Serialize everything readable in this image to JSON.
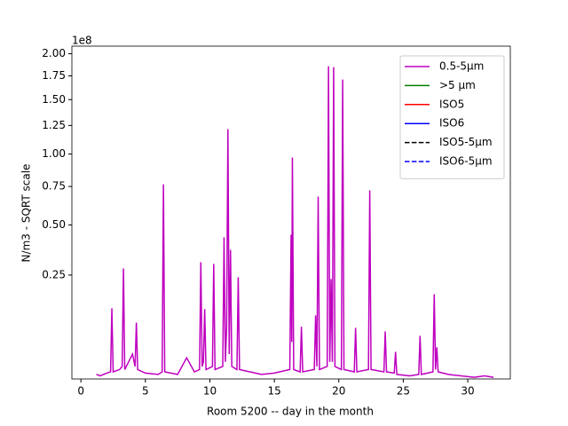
{
  "chart_data": {
    "type": "line",
    "xlabel": "Room 5200 -- day in the month",
    "ylabel": "N/m3 - SQRT scale",
    "y_offset_label": "1e8",
    "yscale": "sqrt",
    "xlim": [
      -0.7,
      33.3
    ],
    "ylim": [
      0.005,
      2.09
    ],
    "xticks": [
      0,
      5,
      10,
      15,
      20,
      25,
      30
    ],
    "yticks": [
      {
        "value": 0.25,
        "label": "0.25"
      },
      {
        "value": 0.5,
        "label": "0.50"
      },
      {
        "value": 0.75,
        "label": "0.75"
      },
      {
        "value": 1.0,
        "label": "1.00"
      },
      {
        "value": 1.25,
        "label": "1.25"
      },
      {
        "value": 1.5,
        "label": "1.50"
      },
      {
        "value": 1.75,
        "label": "1.75"
      },
      {
        "value": 2.0,
        "label": "2.00"
      }
    ],
    "legend": "upper right",
    "series": [
      {
        "name": "0.5-5µm",
        "color": "#bf00bf",
        "dash": "solid",
        "x": [
          1.2,
          1.5,
          2.0,
          2.3,
          2.4,
          2.5,
          3.0,
          3.2,
          3.3,
          3.4,
          3.7,
          4.0,
          4.2,
          4.3,
          4.4,
          5.0,
          6.0,
          6.3,
          6.4,
          6.5,
          7.5,
          8.2,
          8.8,
          9.2,
          9.3,
          9.4,
          9.5,
          9.6,
          9.7,
          10.2,
          10.3,
          10.4,
          11.0,
          11.1,
          11.2,
          11.3,
          11.4,
          11.5,
          11.6,
          11.7,
          12.1,
          12.2,
          12.3,
          13.1,
          14.0,
          15.0,
          16.2,
          16.3,
          16.35,
          16.4,
          16.5,
          17.0,
          17.1,
          17.2,
          18.1,
          18.2,
          18.3,
          18.4,
          18.5,
          19.1,
          19.2,
          19.3,
          19.4,
          19.5,
          19.6,
          19.7,
          20.2,
          20.3,
          20.4,
          21.2,
          21.3,
          21.4,
          22.3,
          22.4,
          22.5,
          23.5,
          23.6,
          23.7,
          24.3,
          24.4,
          24.5,
          25.5,
          26.2,
          26.3,
          26.4,
          27.3,
          27.4,
          27.5,
          27.6,
          27.7,
          28.5,
          30.5,
          31.3,
          32.0
        ],
        "values": [
          0.008,
          0.007,
          0.009,
          0.01,
          0.1315,
          0.01,
          0.012,
          0.015,
          0.278,
          0.012,
          0.02,
          0.03,
          0.015,
          0.092,
          0.012,
          0.009,
          0.008,
          0.01,
          0.766,
          0.01,
          0.008,
          0.025,
          0.01,
          0.012,
          0.306,
          0.015,
          0.02,
          0.129,
          0.012,
          0.015,
          0.298,
          0.012,
          0.015,
          0.43,
          0.02,
          0.08,
          1.216,
          0.03,
          0.365,
          0.015,
          0.012,
          0.241,
          0.012,
          0.01,
          0.008,
          0.009,
          0.012,
          0.444,
          0.05,
          0.971,
          0.012,
          0.01,
          0.082,
          0.01,
          0.012,
          0.111,
          0.015,
          0.679,
          0.012,
          0.015,
          1.857,
          0.02,
          0.234,
          0.02,
          1.847,
          0.015,
          0.012,
          1.71,
          0.012,
          0.01,
          0.0796,
          0.01,
          0.012,
          0.722,
          0.012,
          0.01,
          0.0715,
          0.01,
          0.009,
          0.0335,
          0.008,
          0.007,
          0.008,
          0.062,
          0.008,
          0.01,
          0.177,
          0.012,
          0.0406,
          0.01,
          0.008,
          0.006,
          0.007,
          0.006
        ]
      },
      {
        "name": ">5 µm",
        "color": "#008000",
        "dash": "solid",
        "x": [],
        "values": []
      },
      {
        "name": "ISO5",
        "color": "#ff0000",
        "dash": "solid",
        "x": [],
        "values": []
      },
      {
        "name": "ISO6",
        "color": "#0000ff",
        "dash": "solid",
        "x": [],
        "values": []
      },
      {
        "name": "ISO5-5µm",
        "color": "#000000",
        "dash": "dashed",
        "x": [],
        "values": []
      },
      {
        "name": "ISO6-5µm",
        "color": "#0000ff",
        "dash": "dashed",
        "x": [],
        "values": []
      }
    ]
  }
}
